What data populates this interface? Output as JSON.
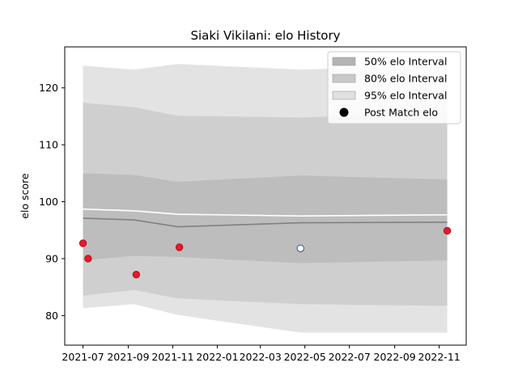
{
  "chart_data": {
    "type": "line",
    "title": "Siaki Vikilani: elo History",
    "xlabel": "",
    "ylabel": "elo score",
    "xlim": [
      "2021-06-06",
      "2022-12-08"
    ],
    "ylim": [
      74.8,
      127.2
    ],
    "x_ticks": [
      "2021-07",
      "2021-09",
      "2021-11",
      "2022-01",
      "2022-03",
      "2022-05",
      "2022-07",
      "2022-09",
      "2022-11"
    ],
    "y_ticks": [
      80,
      90,
      100,
      110,
      120
    ],
    "grid": false,
    "legend_position": "top-right",
    "x": [
      "2021-07-01",
      "2021-09-09",
      "2021-11-08",
      "2022-04-26",
      "2022-11-12"
    ],
    "bands": [
      {
        "name": "95% elo Interval",
        "color": "#e3e3e3",
        "lower": [
          81.3,
          82.0,
          80.1,
          77.0,
          77.0
        ],
        "upper": [
          123.9,
          123.2,
          124.2,
          123.2,
          124.1
        ]
      },
      {
        "name": "80% elo Interval",
        "color": "#cfcfcf",
        "lower": [
          83.5,
          84.5,
          83.0,
          82.0,
          81.7
        ],
        "upper": [
          117.4,
          116.6,
          115.1,
          114.8,
          115.6
        ]
      },
      {
        "name": "50% elo Interval",
        "color": "#bdbdbd",
        "lower": [
          89.7,
          90.5,
          90.3,
          89.2,
          89.7
        ],
        "upper": [
          105.0,
          104.7,
          103.5,
          104.6,
          103.9
        ]
      }
    ],
    "series": [
      {
        "color": "#ffffff",
        "values": [
          98.7,
          98.4,
          97.8,
          97.5,
          97.7
        ]
      },
      {
        "color": "#808080",
        "values": [
          97.1,
          96.8,
          95.6,
          96.3,
          96.4
        ]
      }
    ],
    "points": {
      "name": "Post Match elo",
      "filled_color": "#e8192c",
      "open_color": "#2a4fa0",
      "values": [
        {
          "x": "2021-07-01",
          "y": 92.7,
          "filled": true
        },
        {
          "x": "2021-07-08",
          "y": 90.0,
          "filled": true
        },
        {
          "x": "2021-09-12",
          "y": 87.2,
          "filled": true
        },
        {
          "x": "2021-11-10",
          "y": 92.0,
          "filled": true
        },
        {
          "x": "2022-04-25",
          "y": 91.8,
          "filled": false
        },
        {
          "x": "2022-11-12",
          "y": 94.9,
          "filled": true
        }
      ]
    },
    "legend": [
      {
        "label": "50% elo Interval",
        "kind": "band",
        "color": "#b3b3b3"
      },
      {
        "label": "80% elo Interval",
        "kind": "band",
        "color": "#c9c9c9"
      },
      {
        "label": "95% elo Interval",
        "kind": "band",
        "color": "#e0e0e0"
      },
      {
        "label": "Post Match elo",
        "kind": "marker",
        "color": "#000000"
      }
    ]
  }
}
